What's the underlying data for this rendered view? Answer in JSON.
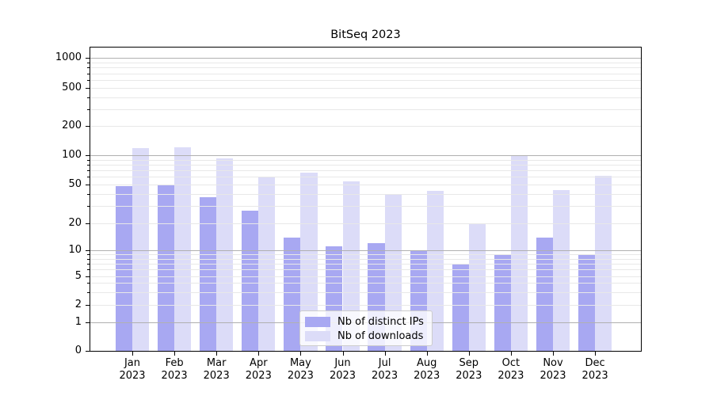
{
  "title": "BitSeq 2023",
  "legend": {
    "items": [
      {
        "label": "Nb of distinct IPs",
        "color": "#a8a8f2"
      },
      {
        "label": "Nb of downloads",
        "color": "#dcdcf8"
      }
    ]
  },
  "chart_data": {
    "type": "bar",
    "title": "BitSeq 2023",
    "categories": [
      "Jan 2023",
      "Feb 2023",
      "Mar 2023",
      "Apr 2023",
      "May 2023",
      "Jun 2023",
      "Jul 2023",
      "Aug 2023",
      "Sep 2023",
      "Oct 2023",
      "Nov 2023",
      "Dec 2023"
    ],
    "series": [
      {
        "name": "Nb of distinct IPs",
        "color": "#a8a8f2",
        "values": [
          48,
          49,
          37,
          27,
          14,
          11,
          12,
          10,
          7,
          9,
          14,
          9
        ]
      },
      {
        "name": "Nb of downloads",
        "color": "#dcdcf8",
        "values": [
          118,
          122,
          93,
          60,
          66,
          54,
          39,
          43,
          20,
          100,
          44,
          62
        ]
      }
    ],
    "xlabel": "",
    "ylabel": "",
    "yscale": "symlog",
    "yticks": [
      0,
      1,
      2,
      5,
      10,
      20,
      50,
      100,
      200,
      500,
      1000
    ],
    "ylim": [
      0,
      1300
    ],
    "grid": true,
    "legend_position": "lower center"
  },
  "colors": {
    "major_grid": "#b0b0b0",
    "minor_grid": "#e8e8e8",
    "spine": "#000000",
    "background": "#ffffff"
  }
}
